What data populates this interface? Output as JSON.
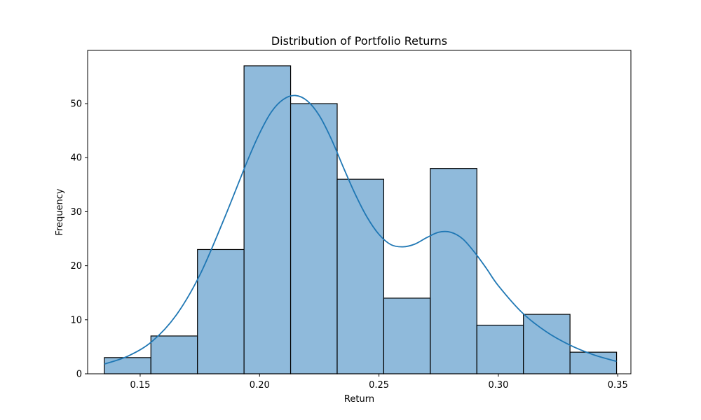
{
  "chart_data": {
    "type": "bar",
    "subtype": "histogram",
    "title": "Distribution of Portfolio Returns",
    "xlabel": "Return",
    "ylabel": "Frequency",
    "xlim": [
      0.128,
      0.3555
    ],
    "ylim": [
      0,
      59.85
    ],
    "xticks": [
      0.15,
      0.2,
      0.25,
      0.3,
      0.35
    ],
    "xtick_labels": [
      "0.15",
      "0.20",
      "0.25",
      "0.30",
      "0.35"
    ],
    "yticks": [
      0,
      10,
      20,
      30,
      40,
      50
    ],
    "ytick_labels": [
      "0",
      "10",
      "20",
      "30",
      "40",
      "50"
    ],
    "bin_edges": [
      0.135,
      0.1545,
      0.174,
      0.1935,
      0.213,
      0.2325,
      0.252,
      0.2715,
      0.291,
      0.3105,
      0.33,
      0.3495
    ],
    "values": [
      3,
      7,
      23,
      57,
      50,
      36,
      14,
      38,
      9,
      11,
      4
    ],
    "bar_color": "#8fbadb",
    "edge_color": "#000000",
    "kde": {
      "color": "#1f77b4",
      "x": [
        0.135,
        0.145,
        0.155,
        0.165,
        0.175,
        0.185,
        0.195,
        0.2,
        0.205,
        0.21,
        0.215,
        0.22,
        0.225,
        0.23,
        0.235,
        0.24,
        0.245,
        0.25,
        0.255,
        0.26,
        0.265,
        0.27,
        0.275,
        0.28,
        0.285,
        0.29,
        0.295,
        0.3,
        0.31,
        0.32,
        0.33,
        0.34,
        0.3495
      ],
      "y": [
        1.8,
        3.3,
        6.0,
        10.8,
        18.3,
        28.5,
        39.5,
        44.5,
        48.5,
        50.8,
        51.5,
        50.5,
        47.8,
        43.5,
        38.3,
        33.3,
        29.0,
        25.8,
        23.9,
        23.5,
        24.0,
        25.2,
        26.2,
        26.2,
        25.0,
        22.5,
        19.5,
        16.3,
        11.3,
        7.8,
        5.3,
        3.5,
        2.3
      ]
    },
    "grid": false,
    "legend": "none"
  }
}
